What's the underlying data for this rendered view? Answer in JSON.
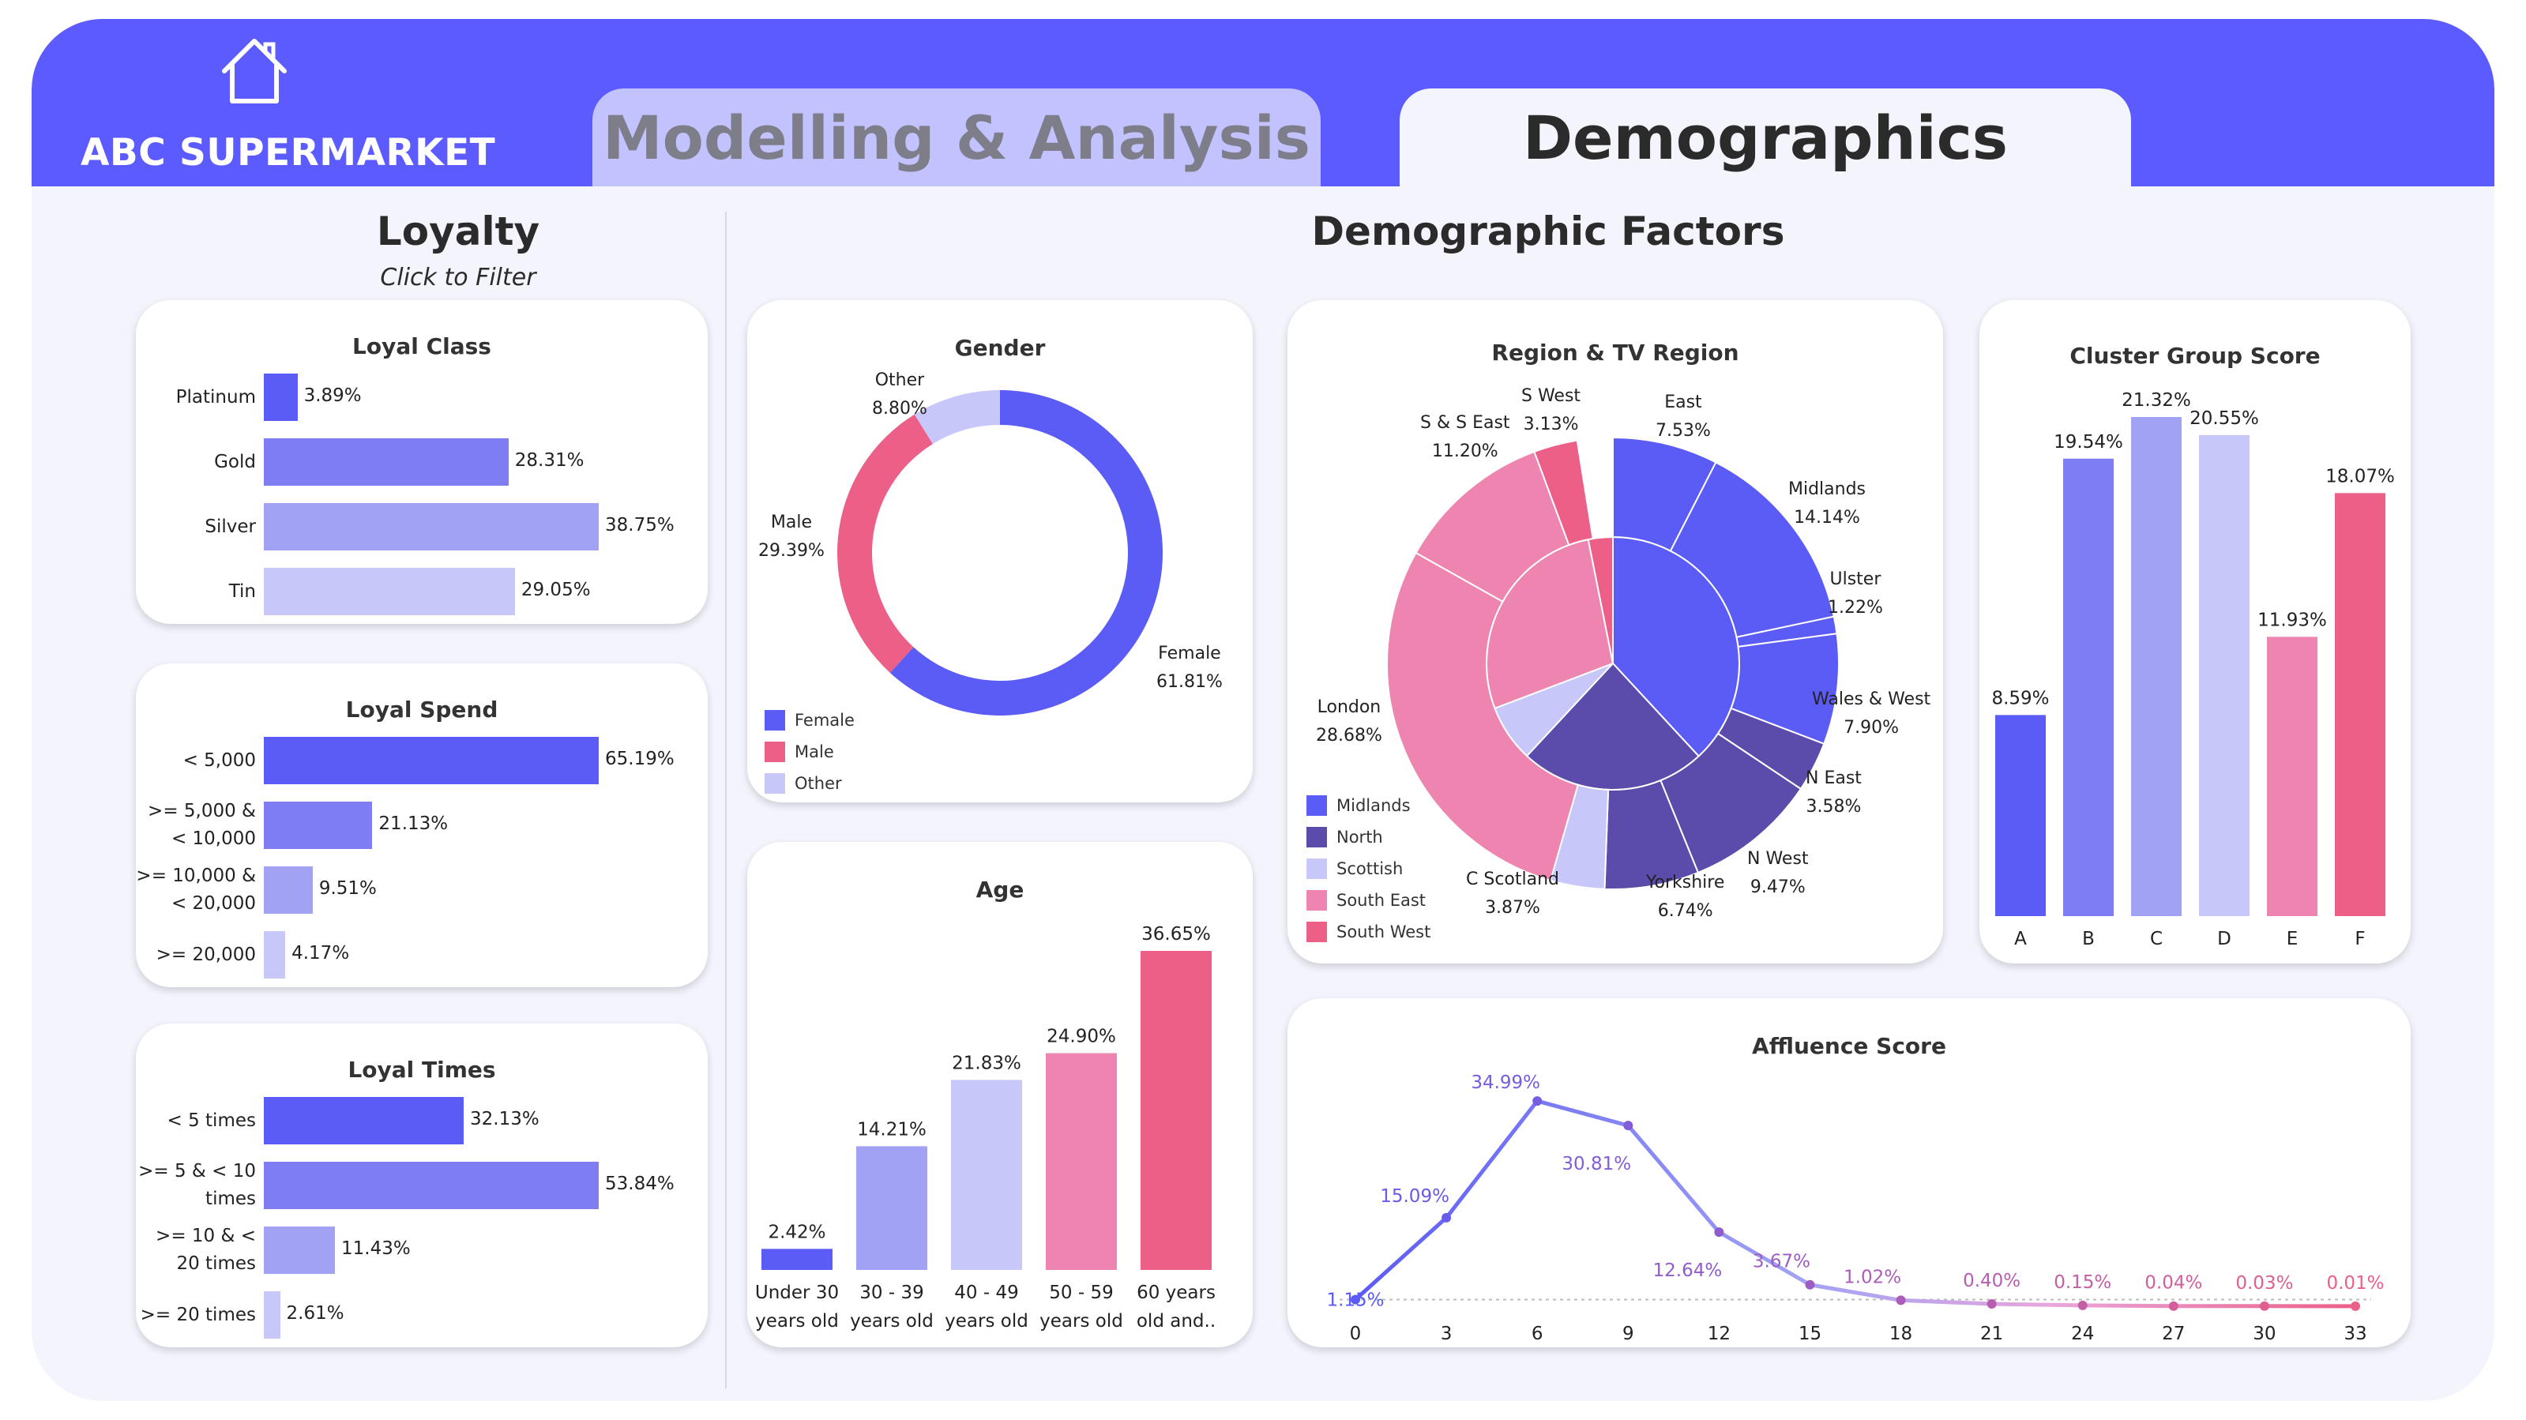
{
  "brand": "ABC SUPERMARKET",
  "tabs": {
    "modelling": "Modelling & Analysis",
    "demographics": "Demographics"
  },
  "loyalty": {
    "title": "Loyalty",
    "subtitle": "Click to Filter"
  },
  "demographic_factors": {
    "title": "Demographic Factors"
  },
  "colors": {
    "blue": "#5b5bf5",
    "mid_blue": "#7e7ef2",
    "light_blue": "#a2a2f5",
    "pale_blue": "#c7c7fa",
    "pink": "#ee85b0",
    "rose": "#ec5f87",
    "dark_purple": "#5b4bab"
  },
  "chart_data": [
    {
      "id": "loyal_class",
      "type": "bar",
      "orientation": "horizontal",
      "title": "Loyal Class",
      "categories": [
        "Platinum",
        "Gold",
        "Silver",
        "Tin"
      ],
      "values": [
        3.89,
        28.31,
        38.75,
        29.05
      ],
      "labels": [
        "3.89%",
        "28.31%",
        "38.75%",
        "29.05%"
      ]
    },
    {
      "id": "loyal_spend",
      "type": "bar",
      "orientation": "horizontal",
      "title": "Loyal Spend",
      "categories": [
        "< 5,000",
        ">= 5,000 & < 10,000",
        ">= 10,000 & < 20,000",
        ">= 20,000"
      ],
      "values": [
        65.19,
        21.13,
        9.51,
        4.17
      ],
      "labels": [
        "65.19%",
        "21.13%",
        "9.51%",
        "4.17%"
      ]
    },
    {
      "id": "loyal_times",
      "type": "bar",
      "orientation": "horizontal",
      "title": "Loyal Times",
      "categories": [
        "< 5 times",
        ">= 5 & < 10 times",
        ">= 10 & < 20 times",
        ">= 20 times"
      ],
      "values": [
        32.13,
        53.84,
        11.43,
        2.61
      ],
      "labels": [
        "32.13%",
        "53.84%",
        "11.43%",
        "2.61%"
      ]
    },
    {
      "id": "gender",
      "type": "pie",
      "title": "Gender",
      "categories": [
        "Female",
        "Male",
        "Other"
      ],
      "values": [
        61.81,
        29.39,
        8.8
      ],
      "labels": [
        "61.81%",
        "29.39%",
        "8.80%"
      ],
      "legend": [
        "Female",
        "Male",
        "Other"
      ]
    },
    {
      "id": "age",
      "type": "bar",
      "title": "Age",
      "categories": [
        "Under 30 years old",
        "30 - 39 years old",
        "40 - 49 years old",
        "50 - 59 years old",
        "60 years old and.."
      ],
      "values": [
        2.42,
        14.21,
        21.83,
        24.9,
        36.65
      ],
      "labels": [
        "2.42%",
        "14.21%",
        "21.83%",
        "24.90%",
        "36.65%"
      ]
    },
    {
      "id": "region",
      "type": "pie",
      "title": "Region & TV Region",
      "legend": [
        "Midlands",
        "North",
        "Scottish",
        "South East",
        "South West"
      ],
      "regions": [
        {
          "name": "Midlands",
          "value": 38.12
        },
        {
          "name": "North",
          "value": 23.79
        },
        {
          "name": "Scottish",
          "value": 7.3
        },
        {
          "name": "South East",
          "value": 27.65
        },
        {
          "name": "South West",
          "value": 3.13
        }
      ],
      "slices": [
        {
          "name": "East",
          "value": 7.53,
          "label": "7.53%",
          "region": "Midlands"
        },
        {
          "name": "Midlands",
          "value": 14.14,
          "label": "14.14%",
          "region": "Midlands"
        },
        {
          "name": "Ulster",
          "value": 1.22,
          "label": "1.22%",
          "region": "Midlands"
        },
        {
          "name": "Wales & West",
          "value": 7.9,
          "label": "7.90%",
          "region": "Midlands"
        },
        {
          "name": "N East",
          "value": 3.58,
          "label": "3.58%",
          "region": "North"
        },
        {
          "name": "N West",
          "value": 9.47,
          "label": "9.47%",
          "region": "North"
        },
        {
          "name": "Yorkshire",
          "value": 6.74,
          "label": "6.74%",
          "region": "North"
        },
        {
          "name": "C Scotland",
          "value": 3.87,
          "label": "3.87%",
          "region": "Scottish"
        },
        {
          "name": "London",
          "value": 28.68,
          "label": "28.68%",
          "region": "South East"
        },
        {
          "name": "S & S East",
          "value": 11.2,
          "label": "11.20%",
          "region": "South East"
        },
        {
          "name": "S West",
          "value": 3.13,
          "label": "3.13%",
          "region": "South West"
        }
      ]
    },
    {
      "id": "cluster",
      "type": "bar",
      "title": "Cluster Group Score",
      "categories": [
        "A",
        "B",
        "C",
        "D",
        "E",
        "F"
      ],
      "values": [
        8.59,
        19.54,
        21.32,
        20.55,
        11.93,
        18.07
      ],
      "labels": [
        "8.59%",
        "19.54%",
        "21.32%",
        "20.55%",
        "11.93%",
        "18.07%"
      ]
    },
    {
      "id": "affluence",
      "type": "line",
      "title": "Affluence Score",
      "x": [
        0,
        3,
        6,
        9,
        12,
        15,
        18,
        21,
        24,
        27,
        30,
        33
      ],
      "values": [
        1.15,
        15.09,
        34.99,
        30.81,
        12.64,
        3.67,
        1.02,
        0.4,
        0.15,
        0.04,
        0.03,
        0.01
      ],
      "labels": [
        "1.15%",
        "15.09%",
        "34.99%",
        "30.81%",
        "12.64%",
        "3.67%",
        "1.02%",
        "0.40%",
        "0.15%",
        "0.04%",
        "0.03%",
        "0.01%"
      ],
      "reference_line": 1.15
    }
  ]
}
